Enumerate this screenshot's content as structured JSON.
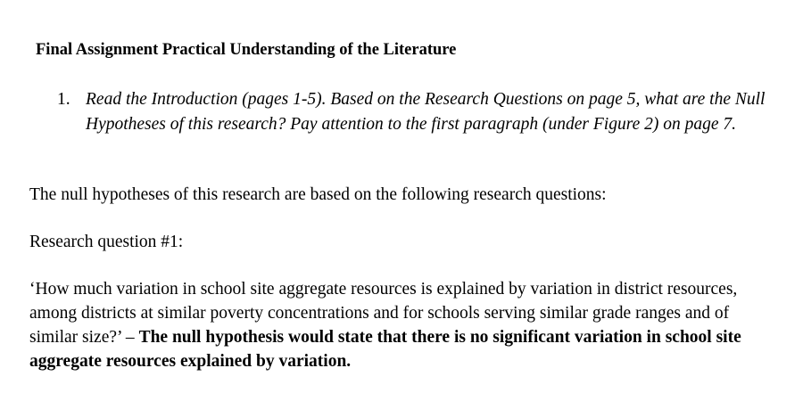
{
  "document": {
    "title": "Final Assignment Practical Understanding of the Literature",
    "question_number": "1.",
    "question_text": "Read the Introduction (pages 1-5). Based on the Research Questions on page 5, what are the Null Hypotheses of this research? Pay attention to the first paragraph (under Figure 2) on page 7.",
    "intro_text": "The null hypotheses of this research are based on the following research questions:",
    "rq_label": "Research question #1:",
    "rq_quote": "‘How much variation in school site aggregate resources is explained by variation in district resources, among districts at similar poverty concentrations and for schools serving similar grade ranges and of similar size?’ – ",
    "null_hypothesis": "The null hypothesis would state that there is no significant variation in school site aggregate resources explained by variation."
  }
}
